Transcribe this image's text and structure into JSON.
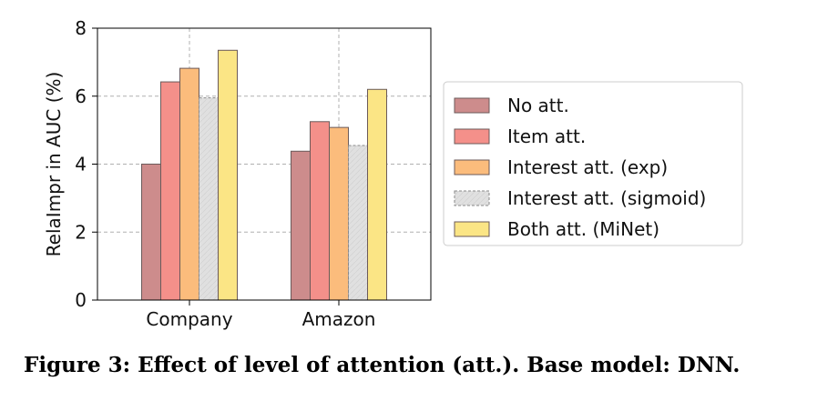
{
  "chart_data": {
    "type": "bar",
    "categories": [
      "Company",
      "Amazon"
    ],
    "series": [
      {
        "name": "No att.",
        "values": [
          4.0,
          4.38
        ],
        "color": "#cd8c8c",
        "hatch": false
      },
      {
        "name": "Item att.",
        "values": [
          6.42,
          5.25
        ],
        "color": "#f4908a",
        "hatch": false
      },
      {
        "name": "Interest att. (exp)",
        "values": [
          6.82,
          5.08
        ],
        "color": "#fbbc7c",
        "hatch": false
      },
      {
        "name": "Interest att. (sigmoid)",
        "values": [
          5.95,
          4.55
        ],
        "color": "#e0e0e0",
        "hatch": true
      },
      {
        "name": "Both att. (MiNet)",
        "values": [
          7.35,
          6.2
        ],
        "color": "#fbe585",
        "hatch": false
      }
    ],
    "xlabel": "",
    "ylabel": "RelaImpr in AUC (%)",
    "ylim": [
      0,
      8
    ],
    "yticks": [
      "0",
      "2",
      "4",
      "6",
      "8"
    ],
    "grid": true,
    "legend_position": "right"
  },
  "caption": "Figure 3: Effect of level of attention (att.). Base model: DNN."
}
